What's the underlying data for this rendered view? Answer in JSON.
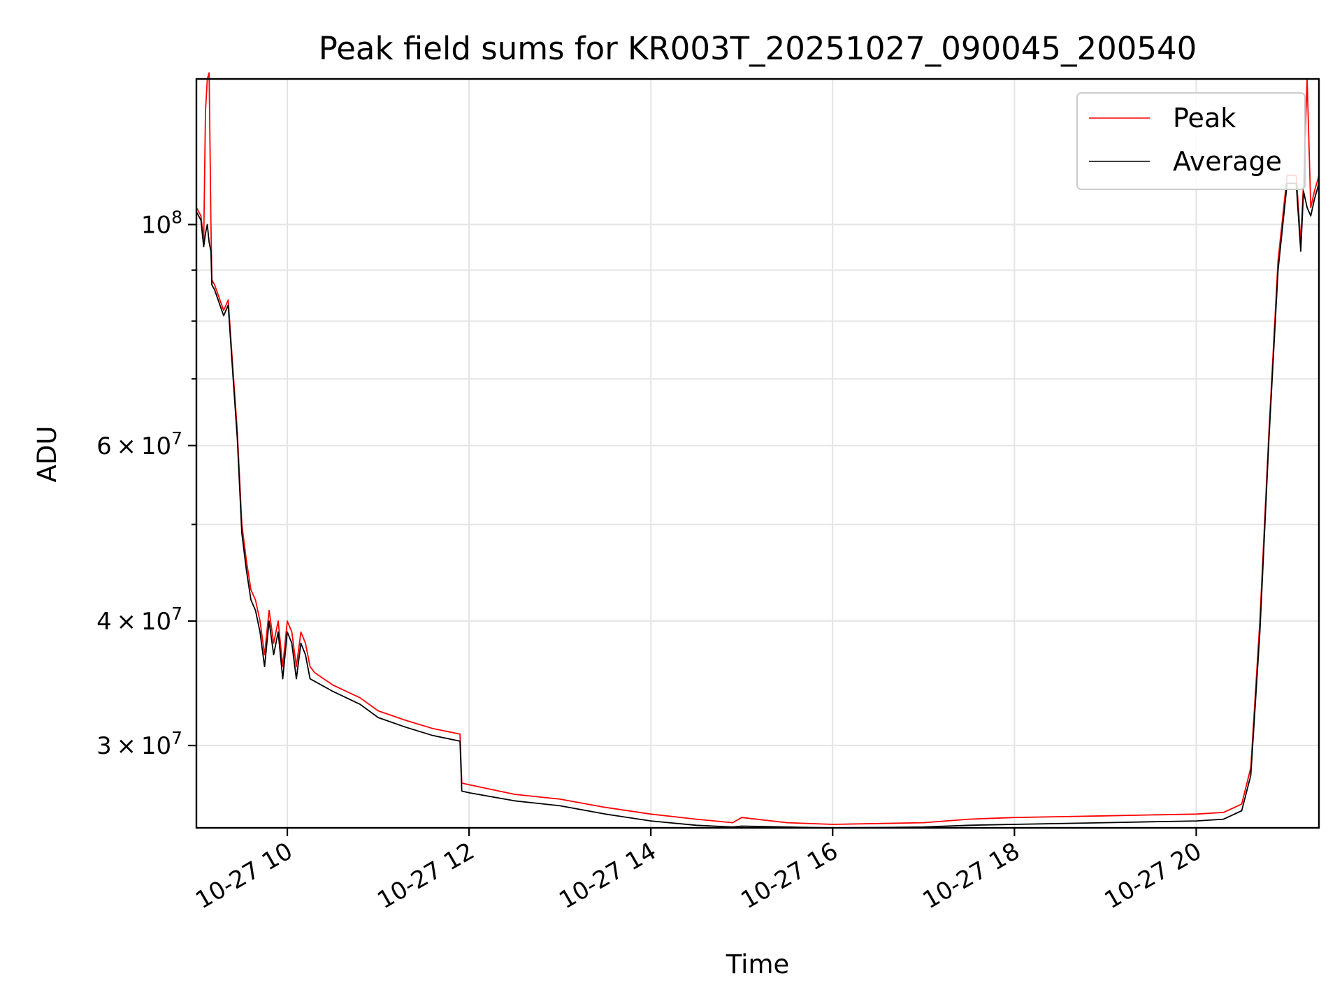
{
  "chart_data": {
    "type": "line",
    "title": "Peak field sums for KR003T_20251027_090045_200540",
    "xlabel": "Time",
    "ylabel": "ADU",
    "x_unit": "hours (10-27)",
    "xlim": [
      9.0,
      21.35
    ],
    "ylim": [
      24800000,
      140000000
    ],
    "yscale": "log",
    "grid": true,
    "legend_position": "upper right",
    "x_ticks": [
      {
        "value": 10,
        "label": "10-27 10"
      },
      {
        "value": 12,
        "label": "10-27 12"
      },
      {
        "value": 14,
        "label": "10-27 14"
      },
      {
        "value": 16,
        "label": "10-27 16"
      },
      {
        "value": 18,
        "label": "10-27 18"
      },
      {
        "value": 20,
        "label": "10-27 20"
      }
    ],
    "y_ticks": [
      {
        "value": 30000000,
        "label": "3 × 10⁷",
        "mant": "3",
        "exp": "7"
      },
      {
        "value": 40000000,
        "label": "4 × 10⁷",
        "mant": "4",
        "exp": "7"
      },
      {
        "value": 60000000,
        "label": "6 × 10⁷",
        "mant": "6",
        "exp": "7"
      },
      {
        "value": 100000000,
        "label": "10⁸",
        "mant": "",
        "exp": "8"
      }
    ],
    "y_minor_ticks": [
      50000000,
      70000000,
      80000000,
      90000000
    ],
    "series": [
      {
        "name": "Peak",
        "color": "#ff0000",
        "x": [
          9.0,
          9.05,
          9.08,
          9.1,
          9.12,
          9.14,
          9.16,
          9.17,
          9.2,
          9.3,
          9.35,
          9.4,
          9.45,
          9.5,
          9.55,
          9.6,
          9.65,
          9.7,
          9.75,
          9.8,
          9.85,
          9.9,
          9.95,
          10.0,
          10.05,
          10.1,
          10.15,
          10.2,
          10.25,
          10.3,
          10.5,
          10.8,
          11.0,
          11.3,
          11.6,
          11.9,
          11.92,
          12.0,
          12.5,
          13.0,
          13.5,
          14.0,
          14.5,
          14.9,
          15.0,
          15.5,
          16.0,
          16.5,
          17.0,
          17.5,
          18.0,
          18.5,
          19.0,
          19.5,
          20.0,
          20.3,
          20.5,
          20.6,
          20.7,
          20.8,
          20.9,
          21.0,
          21.05,
          21.1,
          21.15,
          21.18,
          21.22,
          21.26,
          21.3,
          21.35
        ],
        "y": [
          104000000,
          102000000,
          96000000,
          130000000,
          140000000,
          142000000,
          100000000,
          88000000,
          87000000,
          82000000,
          84000000,
          72000000,
          62000000,
          50000000,
          46000000,
          43000000,
          42000000,
          40000000,
          37000000,
          41000000,
          38000000,
          40000000,
          36000000,
          40000000,
          39000000,
          36000000,
          39000000,
          38000000,
          36000000,
          35500000,
          34500000,
          33500000,
          32500000,
          31800000,
          31200000,
          30800000,
          27500000,
          27400000,
          26800000,
          26500000,
          26000000,
          25600000,
          25300000,
          25100000,
          25400000,
          25100000,
          25000000,
          25050000,
          25100000,
          25300000,
          25400000,
          25450000,
          25500000,
          25550000,
          25600000,
          25700000,
          26200000,
          28500000,
          40000000,
          62000000,
          92000000,
          112000000,
          112000000,
          112000000,
          96000000,
          110000000,
          140000000,
          104000000,
          108000000,
          112000000
        ]
      },
      {
        "name": "Average",
        "color": "#000000",
        "x": [
          9.0,
          9.05,
          9.08,
          9.1,
          9.12,
          9.14,
          9.16,
          9.17,
          9.2,
          9.3,
          9.35,
          9.4,
          9.45,
          9.5,
          9.55,
          9.6,
          9.65,
          9.7,
          9.75,
          9.8,
          9.85,
          9.9,
          9.95,
          10.0,
          10.05,
          10.1,
          10.15,
          10.2,
          10.25,
          10.3,
          10.5,
          10.8,
          11.0,
          11.3,
          11.6,
          11.9,
          11.92,
          12.0,
          12.5,
          13.0,
          13.5,
          14.0,
          14.5,
          14.9,
          15.0,
          15.5,
          16.0,
          16.5,
          17.0,
          17.5,
          18.0,
          18.5,
          19.0,
          19.5,
          20.0,
          20.3,
          20.5,
          20.6,
          20.7,
          20.8,
          20.9,
          21.0,
          21.05,
          21.1,
          21.15,
          21.18,
          21.22,
          21.26,
          21.3,
          21.35
        ],
        "y": [
          103000000,
          101000000,
          95000000,
          98000000,
          100000000,
          96000000,
          94000000,
          87000000,
          86000000,
          81000000,
          83000000,
          71000000,
          61000000,
          49000000,
          45000000,
          42000000,
          41000000,
          39000000,
          36000000,
          40000000,
          37000000,
          39000000,
          35000000,
          39000000,
          38000000,
          35000000,
          38000000,
          37000000,
          35000000,
          34800000,
          34000000,
          33000000,
          32000000,
          31300000,
          30700000,
          30300000,
          27000000,
          26900000,
          26400000,
          26100000,
          25600000,
          25200000,
          24950000,
          24850000,
          24900000,
          24850000,
          24800000,
          24820000,
          24850000,
          24950000,
          25000000,
          25050000,
          25100000,
          25150000,
          25200000,
          25300000,
          25800000,
          28000000,
          39000000,
          61000000,
          90000000,
          110000000,
          110000000,
          110000000,
          94000000,
          108000000,
          104000000,
          102000000,
          106000000,
          110000000
        ]
      }
    ]
  }
}
